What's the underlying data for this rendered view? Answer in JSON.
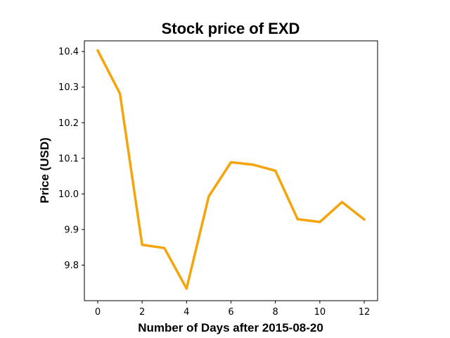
{
  "chart_data": {
    "type": "line",
    "title": "Stock price of EXD",
    "xlabel": "Number of Days after 2015-08-20",
    "ylabel": "Price (USD)",
    "x": [
      0,
      1,
      2,
      3,
      4,
      5,
      6,
      7,
      8,
      9,
      10,
      11,
      12
    ],
    "series": [
      {
        "values": [
          10.403,
          10.282,
          9.857,
          9.848,
          9.734,
          9.993,
          10.089,
          10.082,
          10.065,
          9.929,
          9.921,
          9.977,
          9.928
        ],
        "color": "#f5a40c"
      }
    ],
    "xlim": [
      -0.6,
      12.6
    ],
    "ylim": [
      9.7,
      10.43
    ],
    "x_ticks": [
      "0",
      "2",
      "4",
      "6",
      "8",
      "10",
      "12"
    ],
    "y_ticks": [
      "9.8",
      "9.9",
      "10.0",
      "10.1",
      "10.2",
      "10.3",
      "10.4"
    ],
    "grid": false
  }
}
